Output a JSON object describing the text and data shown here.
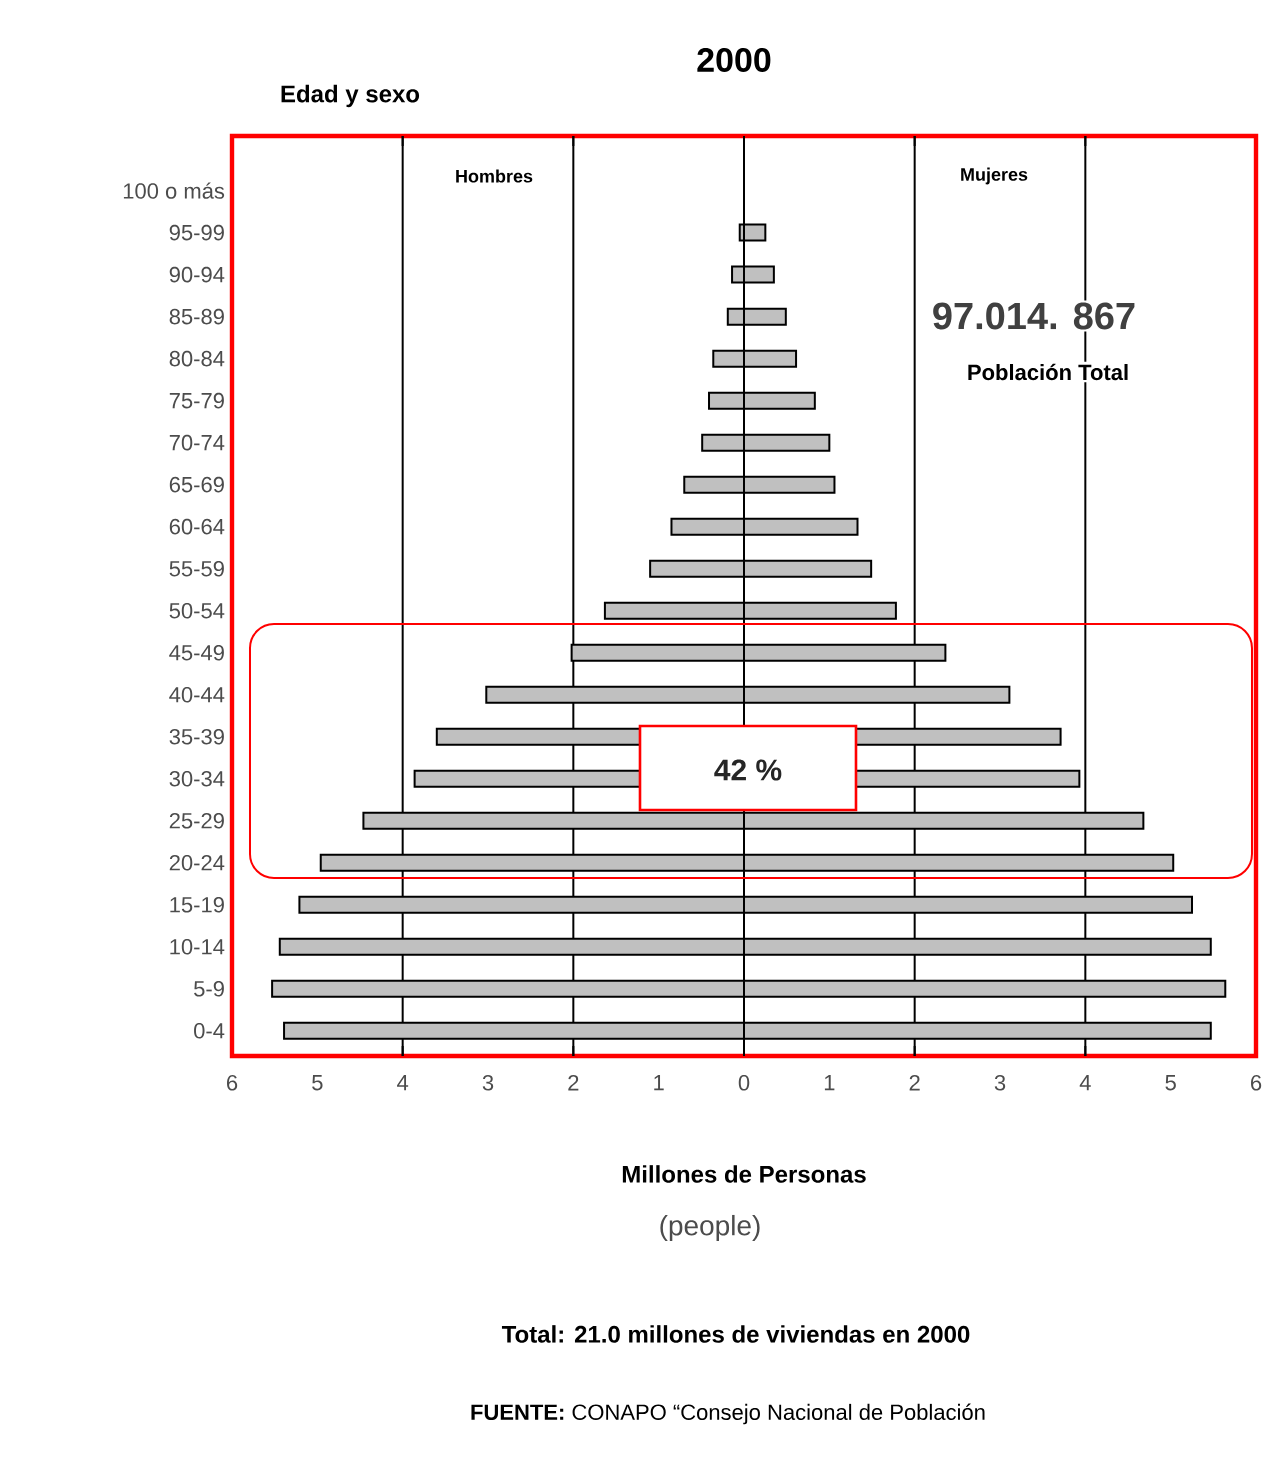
{
  "chart_data": {
    "type": "bar",
    "orientation": "horizontal",
    "title": "2000",
    "ylabel": "Edad y sexo",
    "xlabel": "Millones de Personas",
    "categories": [
      "100 o más",
      "95-99",
      "90-94",
      "85-89",
      "80-84",
      "75-79",
      "70-74",
      "65-69",
      "60-64",
      "55-59",
      "50-54",
      "45-49",
      "40-44",
      "35-39",
      "30-34",
      "25-29",
      "20-24",
      "15-19",
      "10-14",
      "5-9",
      "0-4"
    ],
    "series": [
      {
        "color": "#c0c0c0",
        "values": [
          null,
          -0.05,
          -0.14,
          -0.19,
          -0.36,
          -0.41,
          -0.49,
          -0.7,
          -0.85,
          -1.1,
          -1.63,
          -2.02,
          -3.02,
          -3.6,
          -3.86,
          -4.46,
          -4.96,
          -5.21,
          -5.44,
          -5.53,
          -5.39
        ]
      },
      {
        "color": "#c0c0c0",
        "values": [
          null,
          0.25,
          0.35,
          0.49,
          0.61,
          0.83,
          1.0,
          1.06,
          1.33,
          1.49,
          1.78,
          2.36,
          3.11,
          3.71,
          3.93,
          4.68,
          5.03,
          5.25,
          5.47,
          5.64,
          5.47
        ]
      }
    ],
    "xlim": [
      -6,
      6
    ],
    "xticks": [
      {
        "value": -6,
        "label": "6"
      },
      {
        "value": -5,
        "label": "5"
      },
      {
        "value": -4,
        "label": "4"
      },
      {
        "value": -3,
        "label": "3"
      },
      {
        "value": -2,
        "label": "2"
      },
      {
        "value": -1,
        "label": "1"
      },
      0,
      1,
      2,
      3,
      4,
      5,
      6
    ],
    "grid": "x",
    "stacked": true,
    "annotations": [
      "Hombres",
      "Mujeres",
      "42 %",
      "97.014. 867",
      "Población Total",
      "(people)",
      "Total: 21.0 millones de viviendas en 2000",
      "**FUENTE:** CONAPO “Consejo Nacional de Población"
    ]
  }
}
